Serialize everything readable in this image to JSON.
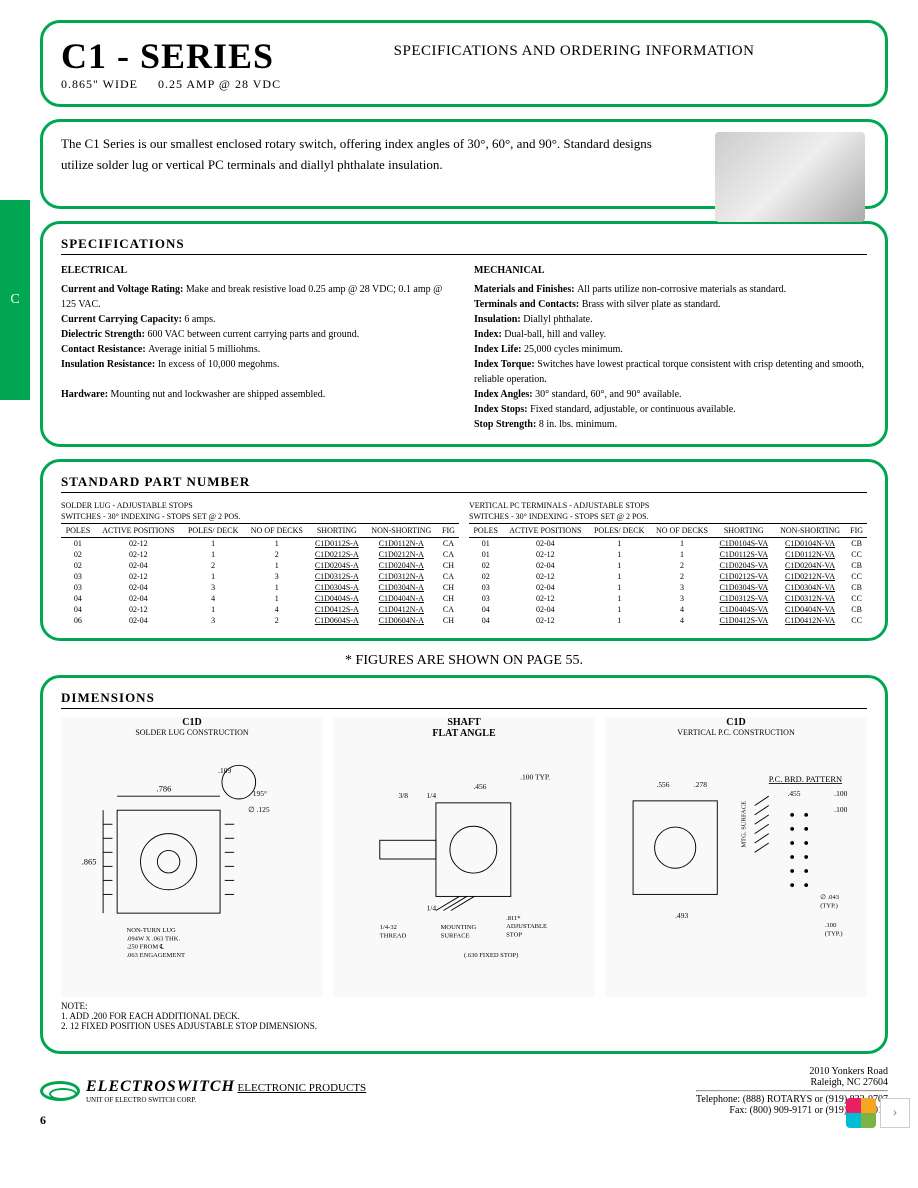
{
  "side_tab": "C",
  "header": {
    "title": "C1 - SERIES",
    "subtitle_left": "0.865\" WIDE",
    "subtitle_right": "0.25 AMP @ 28 VDC",
    "right": "SPECIFICATIONS AND ORDERING INFORMATION"
  },
  "intro": "The C1 Series is our smallest enclosed rotary switch, offering index angles of 30°, 60°, and 90°. Standard designs utilize solder lug or vertical PC terminals and diallyl phthalate insulation.",
  "specs_title": "SPECIFICATIONS",
  "electrical": {
    "heading": "ELECTRICAL",
    "rows": [
      {
        "label": "Current and Voltage Rating:",
        "value": "Make and break resistive load 0.25 amp @ 28 VDC; 0.1 amp @ 125 VAC."
      },
      {
        "label": "Current Carrying Capacity:",
        "value": "6 amps."
      },
      {
        "label": "Dielectric Strength:",
        "value": "600 VAC between current carrying parts and ground."
      },
      {
        "label": "Contact Resistance:",
        "value": "Average initial 5 milliohms."
      },
      {
        "label": "Insulation Resistance:",
        "value": "In excess of 10,000 megohms."
      }
    ],
    "hardware": {
      "label": "Hardware:",
      "value": "Mounting nut and lockwasher are shipped assembled."
    }
  },
  "mechanical": {
    "heading": "MECHANICAL",
    "rows": [
      {
        "label": "Materials and Finishes:",
        "value": "All parts utilize non-corrosive materials as standard."
      },
      {
        "label": "Terminals and Contacts:",
        "value": "Brass with silver plate as standard."
      },
      {
        "label": "Insulation:",
        "value": "Diallyl phthalate."
      },
      {
        "label": "Index:",
        "value": "Dual-ball, hill and valley."
      },
      {
        "label": "Index Life:",
        "value": "25,000 cycles minimum."
      },
      {
        "label": "Index Torque:",
        "value": "Switches have lowest practical torque consistent with crisp detenting and smooth, reliable operation."
      },
      {
        "label": "Index Angles:",
        "value": "30° standard, 60°, and 90° available."
      },
      {
        "label": "Index Stops:",
        "value": "Fixed standard, adjustable, or continuous available."
      },
      {
        "label": "Stop Strength:",
        "value": "8 in. lbs. minimum."
      }
    ]
  },
  "parts_title": "STANDARD PART NUMBER",
  "table_left": {
    "caption1": "SOLDER LUG - ADJUSTABLE STOPS",
    "caption2": "SWITCHES - 30° INDEXING - STOPS SET @ 2 POS.",
    "columns": [
      "POLES",
      "ACTIVE POSITIONS",
      "POLES/ DECK",
      "NO OF DECKS",
      "SHORTING",
      "NON-SHORTING",
      "FIG"
    ],
    "rows": [
      [
        "01",
        "02-12",
        "1",
        "1",
        "C1D0112S-A",
        "C1D0112N-A",
        "CA"
      ],
      [
        "02",
        "02-12",
        "1",
        "2",
        "C1D0212S-A",
        "C1D0212N-A",
        "CA"
      ],
      [
        "02",
        "02-04",
        "2",
        "1",
        "C1D0204S-A",
        "C1D0204N-A",
        "CH"
      ],
      [
        "03",
        "02-12",
        "1",
        "3",
        "C1D0312S-A",
        "C1D0312N-A",
        "CA"
      ],
      [
        "03",
        "02-04",
        "3",
        "1",
        "C1D0304S-A",
        "C1D0304N-A",
        "CH"
      ],
      [
        "04",
        "02-04",
        "4",
        "1",
        "C1D0404S-A",
        "C1D0404N-A",
        "CH"
      ],
      [
        "04",
        "02-12",
        "1",
        "4",
        "C1D0412S-A",
        "C1D0412N-A",
        "CA"
      ],
      [
        "06",
        "02-04",
        "3",
        "2",
        "C1D0604S-A",
        "C1D0604N-A",
        "CH"
      ]
    ]
  },
  "table_right": {
    "caption1": "VERTICAL PC TERMINALS - ADJUSTABLE STOPS",
    "caption2": "SWITCHES - 30° INDEXING - STOPS SET @ 2 POS.",
    "columns": [
      "POLES",
      "ACTIVE POSITIONS",
      "POLES/ DECK",
      "NO OF DECKS",
      "SHORTING",
      "NON-SHORTING",
      "FIG"
    ],
    "rows": [
      [
        "01",
        "02-04",
        "1",
        "1",
        "C1D0104S-VA",
        "C1D0104N-VA",
        "CB"
      ],
      [
        "01",
        "02-12",
        "1",
        "1",
        "C1D0112S-VA",
        "C1D0112N-VA",
        "CC"
      ],
      [
        "02",
        "02-04",
        "1",
        "2",
        "C1D0204S-VA",
        "C1D0204N-VA",
        "CB"
      ],
      [
        "02",
        "02-12",
        "1",
        "2",
        "C1D0212S-VA",
        "C1D0212N-VA",
        "CC"
      ],
      [
        "03",
        "02-04",
        "1",
        "3",
        "C1D0304S-VA",
        "C1D0304N-VA",
        "CB"
      ],
      [
        "03",
        "02-12",
        "1",
        "3",
        "C1D0312S-VA",
        "C1D0312N-VA",
        "CC"
      ],
      [
        "04",
        "02-04",
        "1",
        "4",
        "C1D0404S-VA",
        "C1D0404N-VA",
        "CB"
      ],
      [
        "04",
        "02-12",
        "1",
        "4",
        "C1D0412S-VA",
        "C1D0412N-VA",
        "CC"
      ]
    ]
  },
  "figures_note": "* FIGURES ARE SHOWN ON PAGE 55.",
  "dimensions_title": "DIMENSIONS",
  "dim1": {
    "title": "C1D",
    "sub": "SOLDER LUG CONSTRUCTION",
    "labels": {
      "w": ".786",
      "h": ".865",
      "arc": ".109",
      "flat": "195°",
      "dia": "∅ .125",
      "nonturn": "NON-TURN LUG\n.094W X .063 THK.\n.250 FROM ℄\n.063 ENGAGEMENT"
    }
  },
  "dim2": {
    "title": "SHAFT\nFLAT ANGLE",
    "labels": {
      "typ": ".100 TYP.",
      "a": "3/8",
      "b": "1/4",
      "c": ".456",
      "d": "1/4",
      "thread": "1/4-32\nTHREAD",
      "mount": "MOUNTING\nSURFACE",
      "adj": ".811*\nADJUSTABLE\nSTOP",
      "fixed": "(.630 FIXED STOP)"
    }
  },
  "dim3": {
    "title": "C1D",
    "sub": "VERTICAL P.C. CONSTRUCTION",
    "labels": {
      "a": ".556",
      "b": ".278",
      "c": ".493",
      "pattern": "P.C. BRD. PATTERN",
      "d": ".455",
      "e": ".100",
      "f": ".100",
      "mtg": "MTG. SURFACE",
      "dia": "∅ .043\n(TYP.)",
      "g": ".100\n(TYP.)"
    }
  },
  "notes": {
    "heading": "NOTE:",
    "n1": "1. ADD .200 FOR EACH ADDITIONAL DECK.",
    "n2": "2. 12 FIXED POSITION USES ADJUSTABLE STOP DIMENSIONS."
  },
  "footer": {
    "brand": "ELECTROSWITCH",
    "brand_sub": "ELECTRONIC PRODUCTS",
    "unit": "UNIT OF ELECTRO SWITCH CORP.",
    "addr1": "2010 Yonkers Road",
    "addr2": "Raleigh, NC 27604",
    "tel": "Telephone: (888) ROTARYS or (919) 833-0707",
    "fax": "Fax: (800) 909-9171 or (919) 833-8016"
  },
  "page_num": "6",
  "colors": {
    "accent": "#00a651"
  }
}
